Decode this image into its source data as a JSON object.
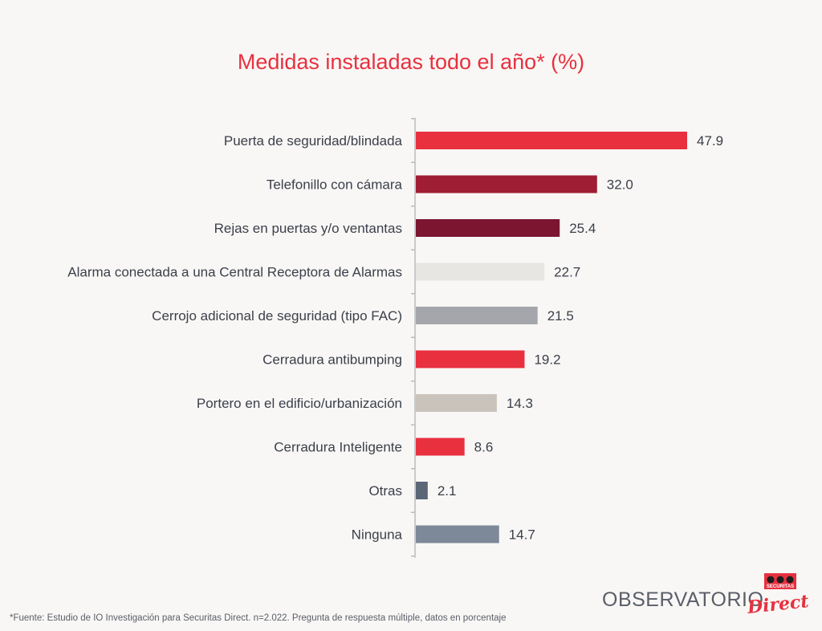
{
  "chart_data": {
    "type": "bar",
    "orientation": "horizontal",
    "title": "Medidas instaladas todo el año* (%)",
    "categories": [
      "Puerta de seguridad/blindada",
      "Telefonillo con cámara",
      "Rejas en puertas y/o ventantas",
      "Alarma conectada a una Central Receptora de Alarmas",
      "Cerrojo adicional de seguridad (tipo FAC)",
      "Cerradura antibumping",
      "Portero en el edificio/urbanización",
      "Cerradura Inteligente",
      "Otras",
      "Ninguna"
    ],
    "values": [
      47.9,
      32.0,
      25.4,
      22.7,
      21.5,
      19.2,
      14.3,
      8.6,
      2.1,
      14.7
    ],
    "value_labels": [
      "47.9",
      "32.0",
      "25.4",
      "22.7",
      "21.5",
      "19.2",
      "14.3",
      "8.6",
      "2.1",
      "14.7"
    ],
    "bar_colors": [
      "#e8303f",
      "#a01e33",
      "#7b1530",
      "#e8e6e2",
      "#a4a6ab",
      "#e8303f",
      "#c9c3bb",
      "#e8303f",
      "#5b6677",
      "#7d8898"
    ],
    "xlim": [
      0,
      50
    ],
    "grid": false,
    "legend": "none"
  },
  "footer": {
    "source": "*Fuente: Estudio de IO Investigación para Securitas Direct. n=2.022. Pregunta de respuesta múltiple, datos en porcentaje",
    "brand": "OBSERVATORIO",
    "logo_top": "SECURITAS",
    "logo_script": "Direct"
  }
}
